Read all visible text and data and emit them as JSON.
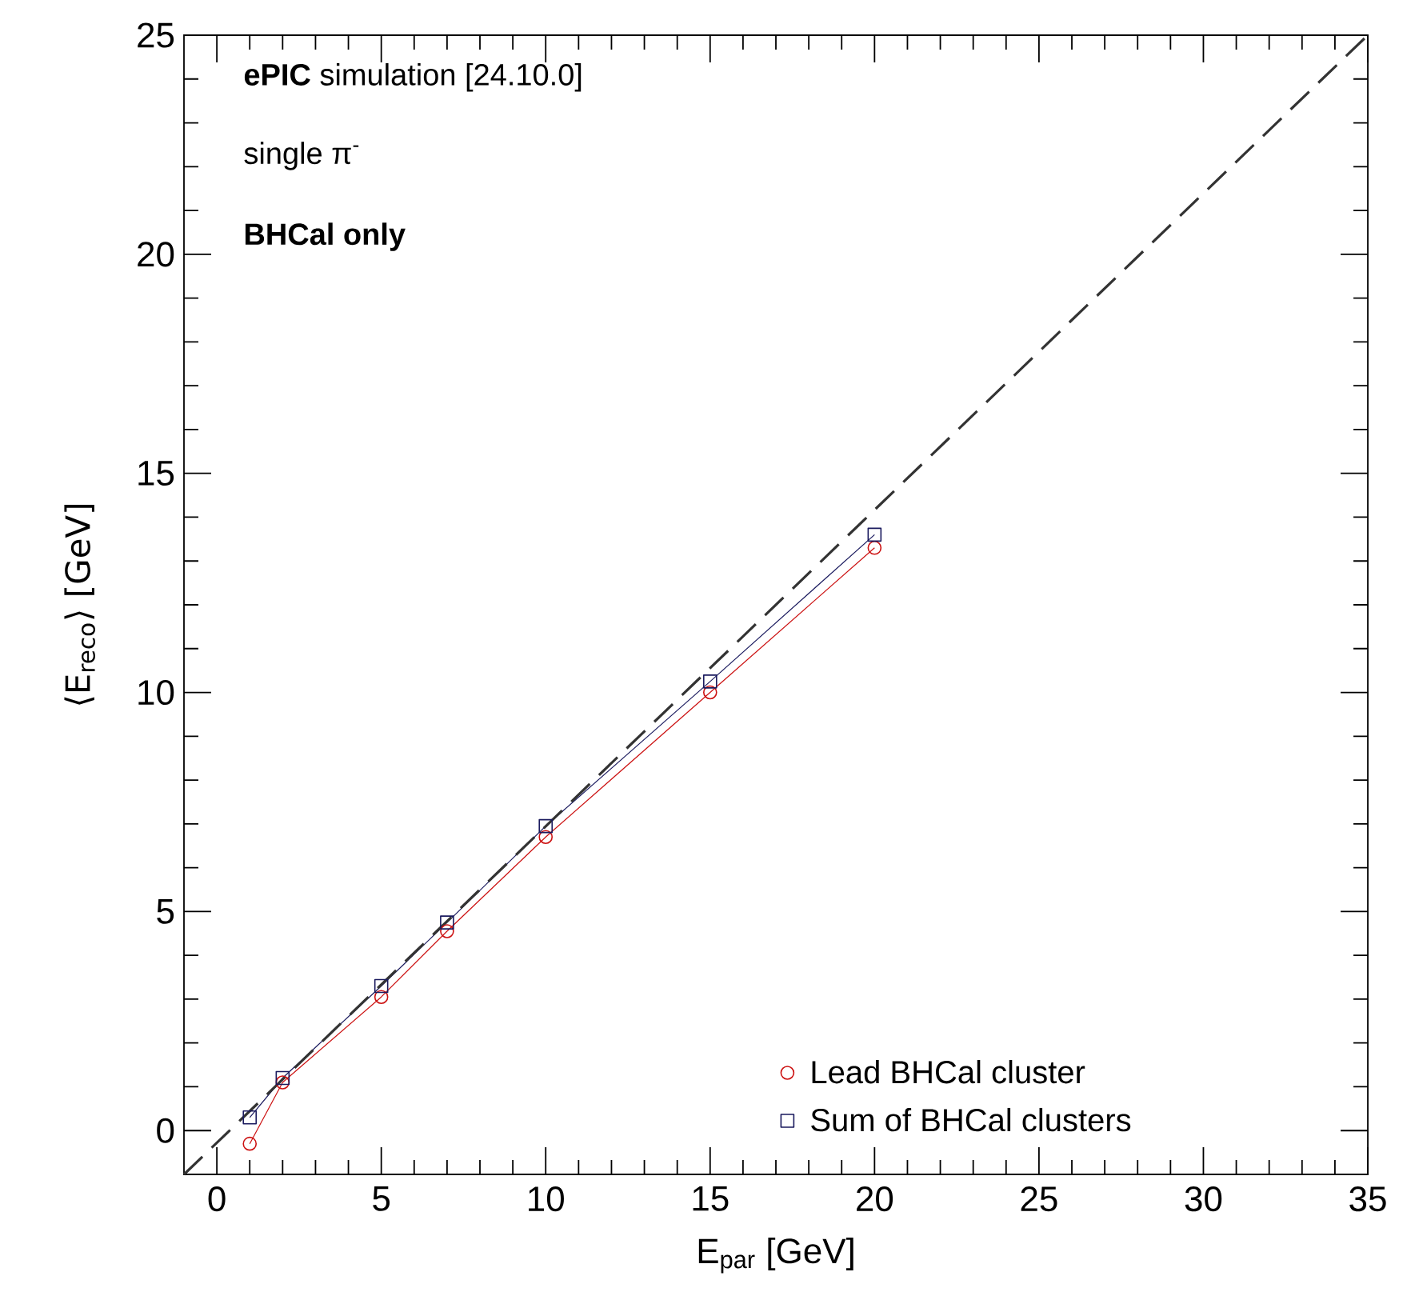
{
  "chart_data": {
    "type": "line",
    "xlabel": "E$_{par}$ [GeV]",
    "ylabel": "⟨E$_{reco}$⟩ [GeV]",
    "annotations": [
      "**ePIC** simulation [24.10.0]",
      "single   π$^{-}$",
      "BHCal only"
    ],
    "xlim": [
      -1,
      35
    ],
    "ylim": [
      -1,
      25
    ],
    "xticks": [
      0,
      5,
      10,
      15,
      20,
      25,
      30,
      35
    ],
    "yticks": [
      0,
      5,
      10,
      15,
      20,
      25
    ],
    "grid": false,
    "legend": "bottom right",
    "series": [
      {
        "name": "Lead BHCal cluster",
        "color": "#cc1111",
        "marker": "circle",
        "line_style": "solid",
        "x": [
          1,
          2,
          5,
          7,
          10,
          15,
          20
        ],
        "values": [
          -0.3,
          1.1,
          3.05,
          4.55,
          6.7,
          10.0,
          13.3
        ]
      },
      {
        "name": "Sum of BHCal clusters",
        "color": "#1a1a5e",
        "marker": "square",
        "line_style": "solid",
        "x": [
          1,
          2,
          5,
          7,
          10,
          15,
          20
        ],
        "values": [
          0.3,
          1.2,
          3.3,
          4.75,
          6.95,
          10.25,
          13.6
        ]
      },
      {
        "color": "#333333",
        "marker": "none",
        "line_style": "dashed",
        "x": [
          -1,
          35
        ],
        "values": [
          -1,
          25
        ]
      }
    ]
  }
}
